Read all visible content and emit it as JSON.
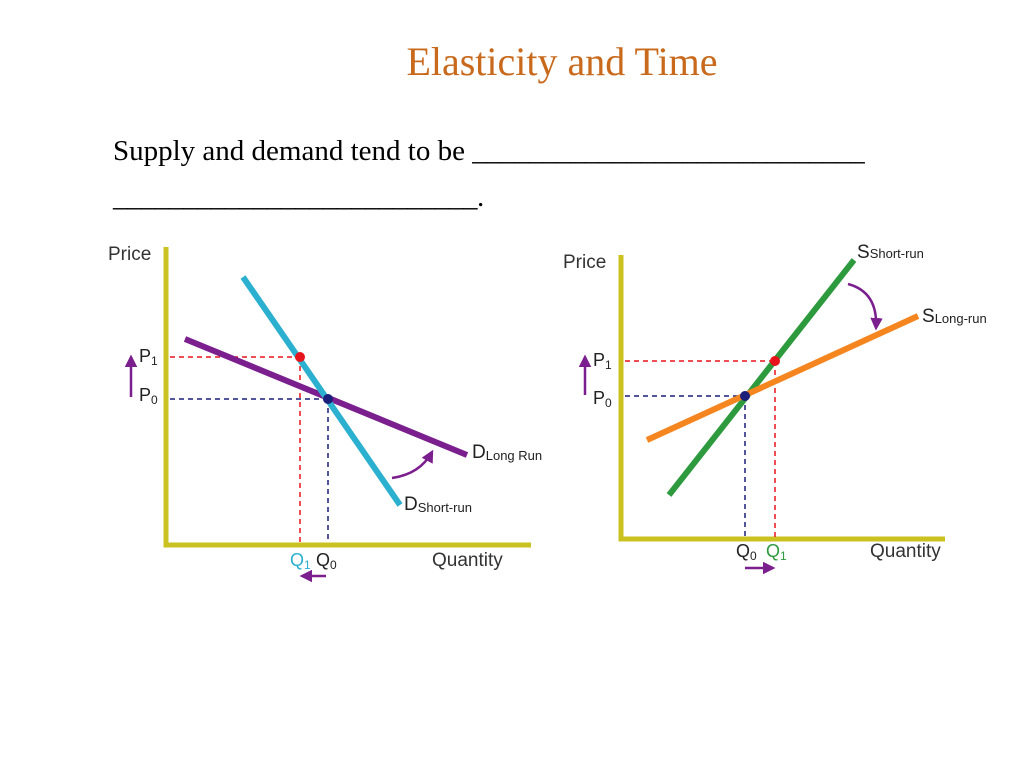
{
  "slide": {
    "title": "Elasticity and Time",
    "prompt_text": "Supply and demand tend to be",
    "blank_line_1": "____________________________",
    "blank_line_2": "__________________________."
  },
  "colors": {
    "title": "#c8691b",
    "axis": "#c9c221",
    "demand_long_run": "#7b1f8e",
    "demand_short_run": "#2cb0cf",
    "supply_short_run": "#2e9a3e",
    "supply_long_run": "#f5851f",
    "new_equilibrium_dot": "#e8141b",
    "old_equilibrium_dot": "#1b1f7a",
    "arrow": "#7b1f8e"
  },
  "demand_graph": {
    "y_axis_label": "Price",
    "x_axis_label": "Quantity",
    "p1": {
      "main": "P",
      "sub": "1"
    },
    "p0": {
      "main": "P",
      "sub": "0"
    },
    "q1": {
      "main": "Q",
      "sub": "1"
    },
    "q0": {
      "main": "Q",
      "sub": "0"
    },
    "d_long_run": {
      "main": "D",
      "sub": "Long Run"
    },
    "d_short_run": {
      "main": "D",
      "sub": "Short-run"
    },
    "price_change": "up",
    "quantity_change": "left"
  },
  "supply_graph": {
    "y_axis_label": "Price",
    "x_axis_label": "Quantity",
    "p1": {
      "main": "P",
      "sub": "1"
    },
    "p0": {
      "main": "P",
      "sub": "0"
    },
    "q0": {
      "main": "Q",
      "sub": "0"
    },
    "q1": {
      "main": "Q",
      "sub": "1"
    },
    "s_short_run": {
      "main": "S",
      "sub": "Short-run"
    },
    "s_long_run": {
      "main": "S",
      "sub": "Long-run"
    },
    "price_change": "up",
    "quantity_change": "right"
  }
}
